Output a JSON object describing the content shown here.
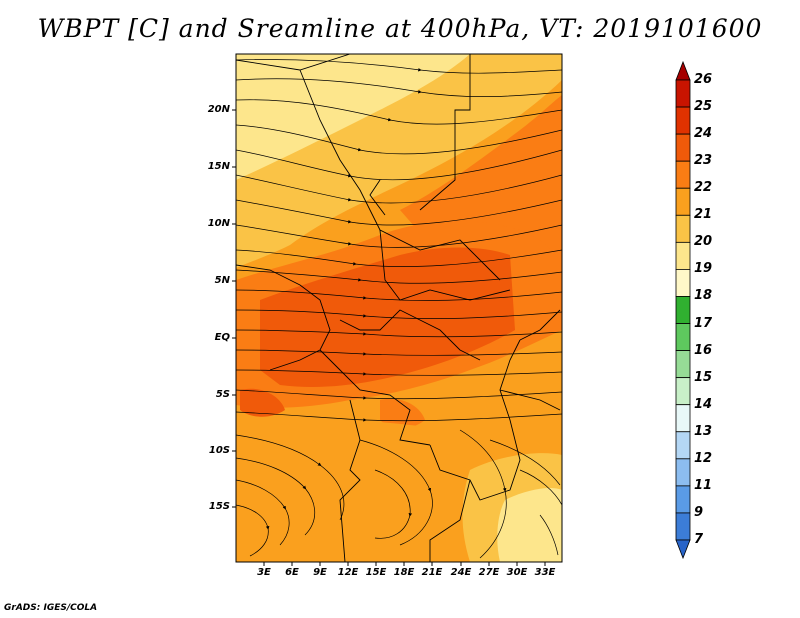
{
  "title": "WBPT [C] and Sreamline at 400hPa, VT: 2019101600",
  "credit": "GrADS: IGES/COLA",
  "map": {
    "variable": "Wet-bulb potential temperature (WBPT)",
    "units": "C",
    "level": "400hPa",
    "valid_time": "2019101600",
    "lat_labels": [
      "20N",
      "15N",
      "10N",
      "5N",
      "EQ",
      "5S",
      "10S",
      "15S"
    ],
    "lon_labels": [
      "3E",
      "6E",
      "9E",
      "12E",
      "15E",
      "18E",
      "21E",
      "24E",
      "27E",
      "30E",
      "33E"
    ]
  },
  "colorbar": {
    "levels": [
      "26",
      "25",
      "24",
      "23",
      "22",
      "21",
      "20",
      "19",
      "18",
      "17",
      "16",
      "15",
      "14",
      "13",
      "12",
      "11",
      "9",
      "7"
    ],
    "colors": [
      "#a50000",
      "#c81400",
      "#e03200",
      "#f05a0a",
      "#fa7d14",
      "#faa01e",
      "#fac346",
      "#fde68c",
      "#fff8c8",
      "#30b030",
      "#5ec85e",
      "#96dc96",
      "#c8f0c8",
      "#e8f8f8",
      "#b4d7f5",
      "#8cbdf0",
      "#5a9be6",
      "#3c7dd7",
      "#2864c8"
    ]
  }
}
